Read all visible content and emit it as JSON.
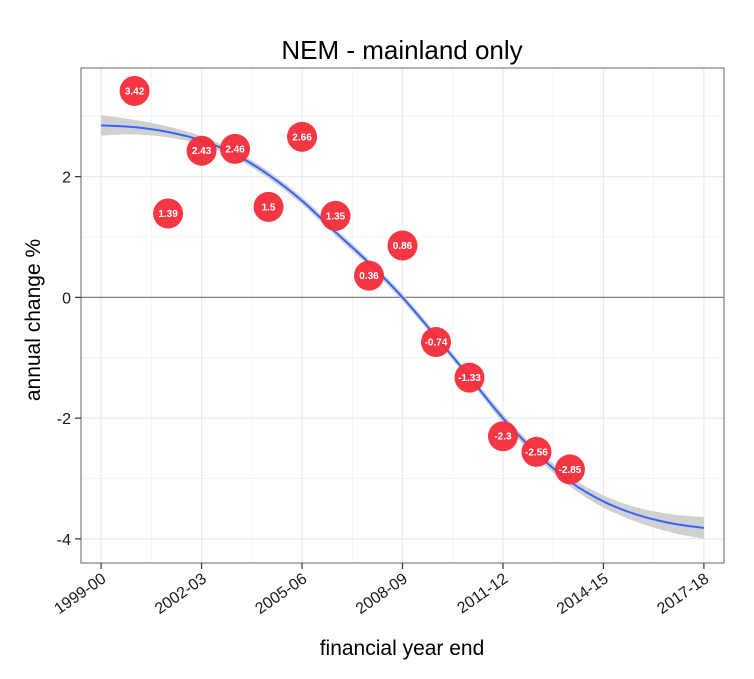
{
  "chart_data": {
    "type": "scatter",
    "title": "NEM - mainland only",
    "xlabel": "financial year end",
    "ylabel": "annual change %",
    "x_ticks": [
      "1999-00",
      "2002-03",
      "2005-06",
      "2008-09",
      "2011-12",
      "2014-15",
      "2017-18"
    ],
    "y_ticks": [
      -4,
      -2,
      0,
      2
    ],
    "xlim": [
      1999.4,
      2018.6
    ],
    "ylim": [
      -4.4,
      3.8
    ],
    "grid": true,
    "points": [
      {
        "x": 2001,
        "y": 3.42,
        "label": "3.42"
      },
      {
        "x": 2002,
        "y": 1.39,
        "label": "1.39"
      },
      {
        "x": 2003,
        "y": 2.43,
        "label": "2.43"
      },
      {
        "x": 2004,
        "y": 2.46,
        "label": "2.46"
      },
      {
        "x": 2005,
        "y": 1.5,
        "label": "1.5"
      },
      {
        "x": 2006,
        "y": 2.66,
        "label": "2.66"
      },
      {
        "x": 2007,
        "y": 1.35,
        "label": "1.35"
      },
      {
        "x": 2008,
        "y": 0.36,
        "label": "0.36"
      },
      {
        "x": 2009,
        "y": 0.86,
        "label": "0.86"
      },
      {
        "x": 2010,
        "y": -0.74,
        "label": "-0.74"
      },
      {
        "x": 2011,
        "y": -1.33,
        "label": "-1.33"
      },
      {
        "x": 2012,
        "y": -2.3,
        "label": "-2.3"
      },
      {
        "x": 2013,
        "y": -2.56,
        "label": "-2.56"
      },
      {
        "x": 2014,
        "y": -2.85,
        "label": "-2.85"
      }
    ],
    "trend": {
      "x": [
        2000,
        2001,
        2002,
        2003,
        2004,
        2005,
        2006,
        2007,
        2008,
        2009,
        2010,
        2011,
        2012,
        2013,
        2014,
        2015,
        2016,
        2017,
        2018
      ],
      "y": [
        2.85,
        2.82,
        2.74,
        2.6,
        2.37,
        2.03,
        1.6,
        1.08,
        0.57,
        0.0,
        -0.65,
        -1.32,
        -2.0,
        -2.58,
        -3.05,
        -3.38,
        -3.6,
        -3.74,
        -3.82
      ],
      "band_halfwidth": [
        0.17,
        0.12,
        0.09,
        0.07,
        0.06,
        0.06,
        0.06,
        0.06,
        0.06,
        0.06,
        0.06,
        0.06,
        0.07,
        0.07,
        0.08,
        0.1,
        0.12,
        0.15,
        0.18
      ]
    },
    "colors": {
      "point": "#f42c3a",
      "trend_line": "#3366ff",
      "band": "#c8c8c8",
      "grid": "#ebebeb",
      "zero_line": "#7f7f7f",
      "frame": "#7f7f7f"
    }
  }
}
